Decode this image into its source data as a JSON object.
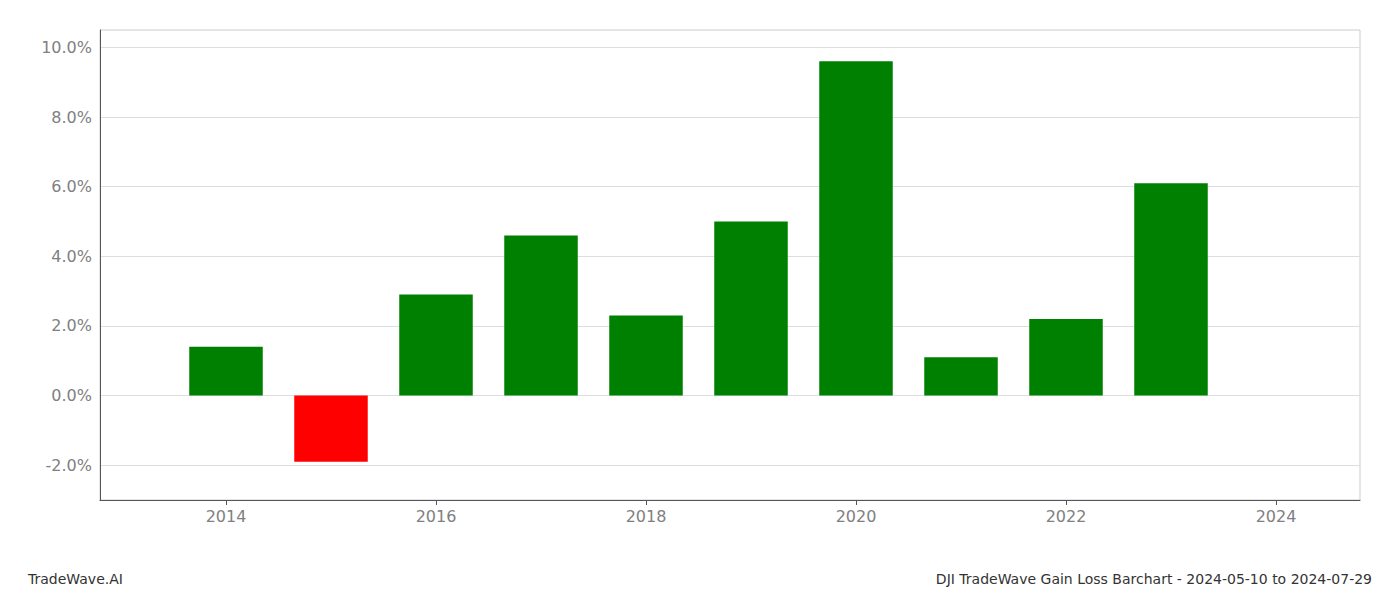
{
  "chart_data": {
    "type": "bar",
    "title": "DJI TradeWave Gain Loss Barchart - 2024-05-10 to 2024-07-29",
    "annotations": [
      "TradeWave.AI"
    ],
    "x": [
      2014,
      2015,
      2016,
      2017,
      2018,
      2019,
      2020,
      2021,
      2022,
      2023
    ],
    "values": [
      0.014,
      -0.019,
      0.029,
      0.046,
      0.023,
      0.05,
      0.096,
      0.011,
      0.022,
      0.061
    ],
    "colors": [
      "#008000",
      "#ff0000",
      "#008000",
      "#008000",
      "#008000",
      "#008000",
      "#008000",
      "#008000",
      "#008000",
      "#008000"
    ],
    "xlim": [
      2012.8,
      2024.8
    ],
    "xticks": [
      2014,
      2016,
      2018,
      2020,
      2022,
      2024
    ],
    "ylim": [
      -0.03,
      0.105
    ],
    "yticks": [
      {
        "value": -0.02,
        "label": "-2.0%"
      },
      {
        "value": 0.0,
        "label": "0.0%"
      },
      {
        "value": 0.02,
        "label": "2.0%"
      },
      {
        "value": 0.04,
        "label": "4.0%"
      },
      {
        "value": 0.06,
        "label": "6.0%"
      },
      {
        "value": 0.08,
        "label": "8.0%"
      },
      {
        "value": 0.1,
        "label": "10.0%"
      }
    ],
    "grid": true
  }
}
